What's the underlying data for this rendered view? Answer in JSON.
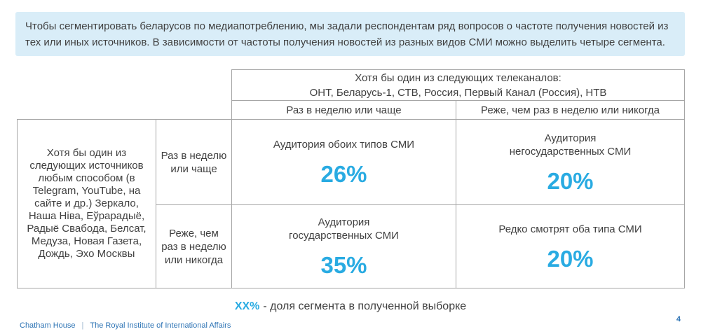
{
  "intro": {
    "text": "Чтобы сегментировать беларусов по медиапотреблению, мы задали респондентам ряд вопросов о частоте получения новостей из тех или иных источников. В зависимости от частоты получения новостей из разных видов СМИ можно выделить четыре сегмента."
  },
  "table": {
    "column_group_header": {
      "line1": "Хотя бы один из следующих телеканалов:",
      "line2": "ОНТ, Беларусь-1, СТВ, Россия, Первый Канал (Россия), НТВ"
    },
    "column_headers": [
      "Раз в неделю или чаще",
      "Реже, чем раз в неделю или никогда"
    ],
    "row_group_header": "Хотя бы один из\nследующих источников\nлюбым способом (в\nTelegram, YouTube, на\nсайте и др.) Зеркало,\nНаша Ніва, Еўрарадыё,\nРадыё Свабода, Белсат,\nМедуза, Новая Газета,\nДождь, Эхо Москвы",
    "row_headers": [
      "Раз в неделю\nили чаще",
      "Реже, чем\nраз в неделю\nили никогда"
    ],
    "segments": [
      {
        "label": "Аудитория обоих типов СМИ",
        "value": "26%"
      },
      {
        "label": "Аудитория\nнегосударственных СМИ",
        "value": "20%"
      },
      {
        "label": "Аудитория\nгосударственных СМИ",
        "value": "35%"
      },
      {
        "label": "Редко смотрят оба типа СМИ",
        "value": "20%"
      }
    ]
  },
  "legend": {
    "prefix": "XX%",
    "text": "- доля сегмента в полученной выборке"
  },
  "footer": {
    "org": "Chatham House",
    "separator": "|",
    "org_full": "The Royal Institute of International Affairs",
    "page": "4"
  },
  "colors": {
    "accent_blue": "#29abe2",
    "footer_blue": "#2e74b5",
    "intro_background": "#d9edf8",
    "table_border": "#a6a6a6",
    "text": "#404040"
  }
}
